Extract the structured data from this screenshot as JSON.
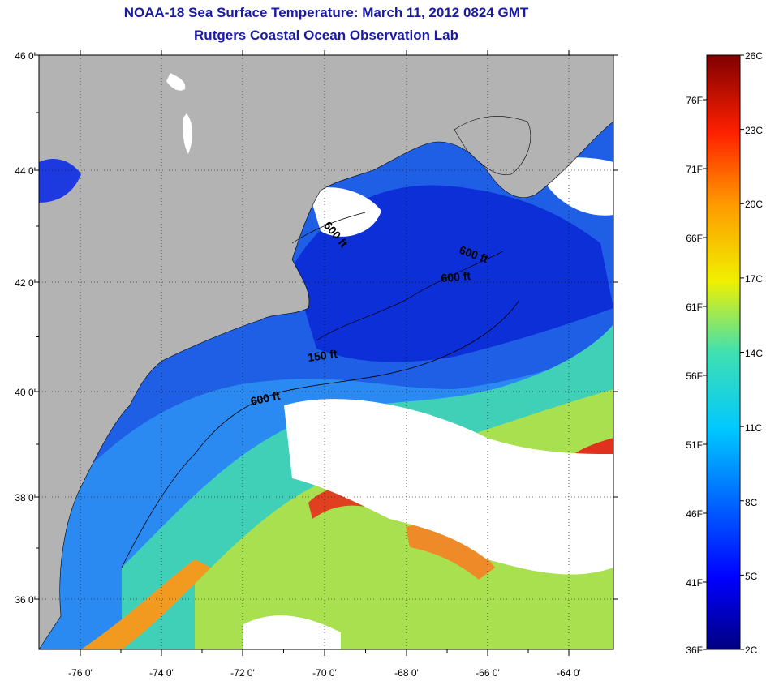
{
  "header": {
    "title": "NOAA-18 Sea Surface Temperature:  March 11, 2012 0824 GMT",
    "subtitle": "Rutgers Coastal Ocean Observation Lab"
  },
  "map": {
    "lat_range": [
      35,
      46
    ],
    "lon_range": [
      -77,
      -63
    ],
    "lat_ticks": [
      "46 0'",
      "44 0'",
      "42 0'",
      "40 0'",
      "38 0'",
      "36 0'"
    ],
    "lon_ticks": [
      "-76 0'",
      "-74 0'",
      "-72 0'",
      "-70 0'",
      "-68 0'",
      "-66 0'",
      "-64 0'"
    ],
    "contours": [
      "600 ft",
      "600 ft",
      "600 ft",
      "150 ft",
      "600 ft"
    ],
    "colors": {
      "land": "#b3b3b3",
      "cloud": "#ffffff",
      "cold": "#0a2bd6",
      "shelf": "#1e6cf0",
      "warm": "#f2a21a",
      "hot": "#e0301e"
    }
  },
  "colorbar": {
    "celsius": [
      "26C",
      "23C",
      "20C",
      "17C",
      "14C",
      "11C",
      "8C",
      "5C",
      "2C"
    ],
    "fahrenheit": [
      "76F",
      "71F",
      "66F",
      "61F",
      "56F",
      "51F",
      "46F",
      "41F",
      "36F"
    ],
    "range_c": [
      2,
      26
    ]
  }
}
